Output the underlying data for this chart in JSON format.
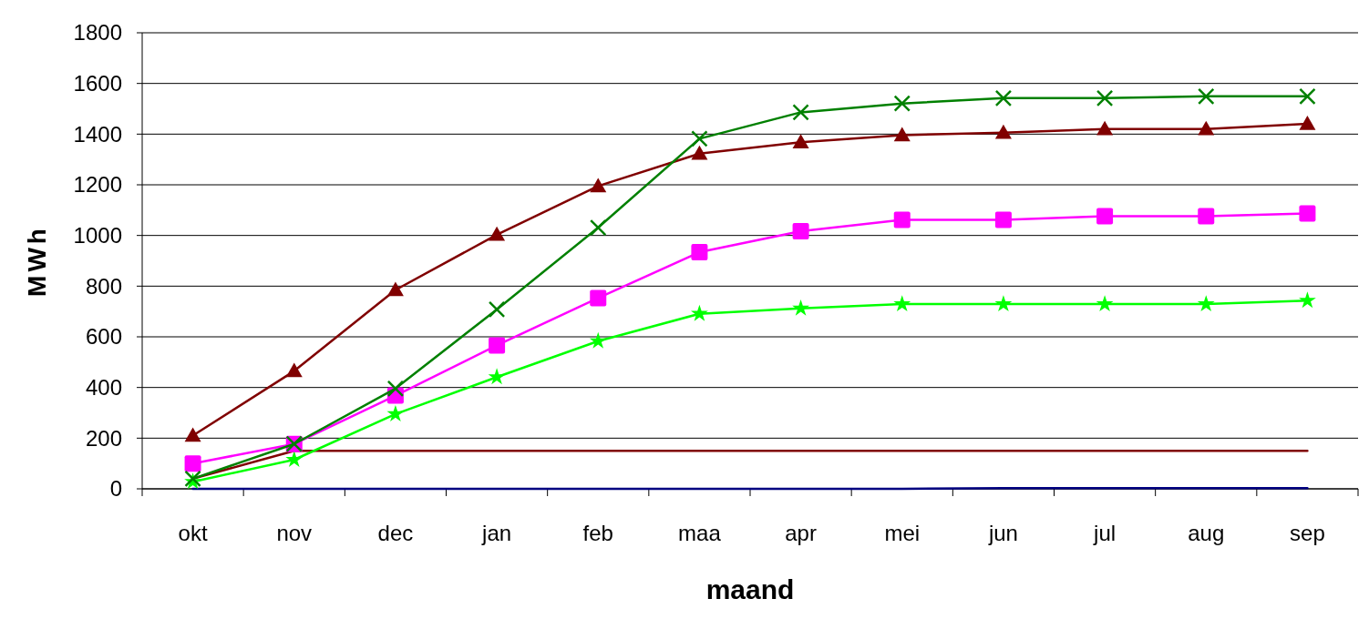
{
  "chart_data": {
    "type": "line",
    "xlabel": "maand",
    "ylabel": "MWh",
    "categories": [
      "okt",
      "nov",
      "dec",
      "jan",
      "feb",
      "maa",
      "apr",
      "mei",
      "jun",
      "jul",
      "aug",
      "sep"
    ],
    "ylim": [
      0,
      1800
    ],
    "yticks": [
      0,
      200,
      400,
      600,
      800,
      1000,
      1200,
      1400,
      1600,
      1800
    ],
    "grid": "y",
    "line_style": "solid",
    "series": [
      {
        "color": "#000080",
        "marker": "none",
        "values": [
          0,
          0,
          0,
          0,
          0,
          0,
          0,
          0,
          3,
          3,
          3,
          3
        ]
      },
      {
        "color": "#800000",
        "marker": "none",
        "values": [
          40,
          150,
          150,
          150,
          150,
          150,
          150,
          150,
          150,
          150,
          150,
          150
        ]
      },
      {
        "color": "#00ff00",
        "marker": "star",
        "values": [
          28,
          115,
          295,
          441,
          583,
          691,
          712,
          729,
          729,
          729,
          729,
          743
        ]
      },
      {
        "color": "#ff00ff",
        "marker": "square",
        "values": [
          100,
          177,
          368,
          566,
          753,
          934,
          1017,
          1062,
          1062,
          1076,
          1076,
          1087
        ]
      },
      {
        "color": "#800000",
        "marker": "triangle",
        "values": [
          210,
          465,
          785,
          1003,
          1195,
          1323,
          1368,
          1396,
          1406,
          1420,
          1420,
          1441
        ]
      },
      {
        "color": "#008000",
        "marker": "cross",
        "values": [
          40,
          177,
          396,
          708,
          1031,
          1382,
          1486,
          1521,
          1542,
          1542,
          1549,
          1549
        ]
      }
    ]
  }
}
